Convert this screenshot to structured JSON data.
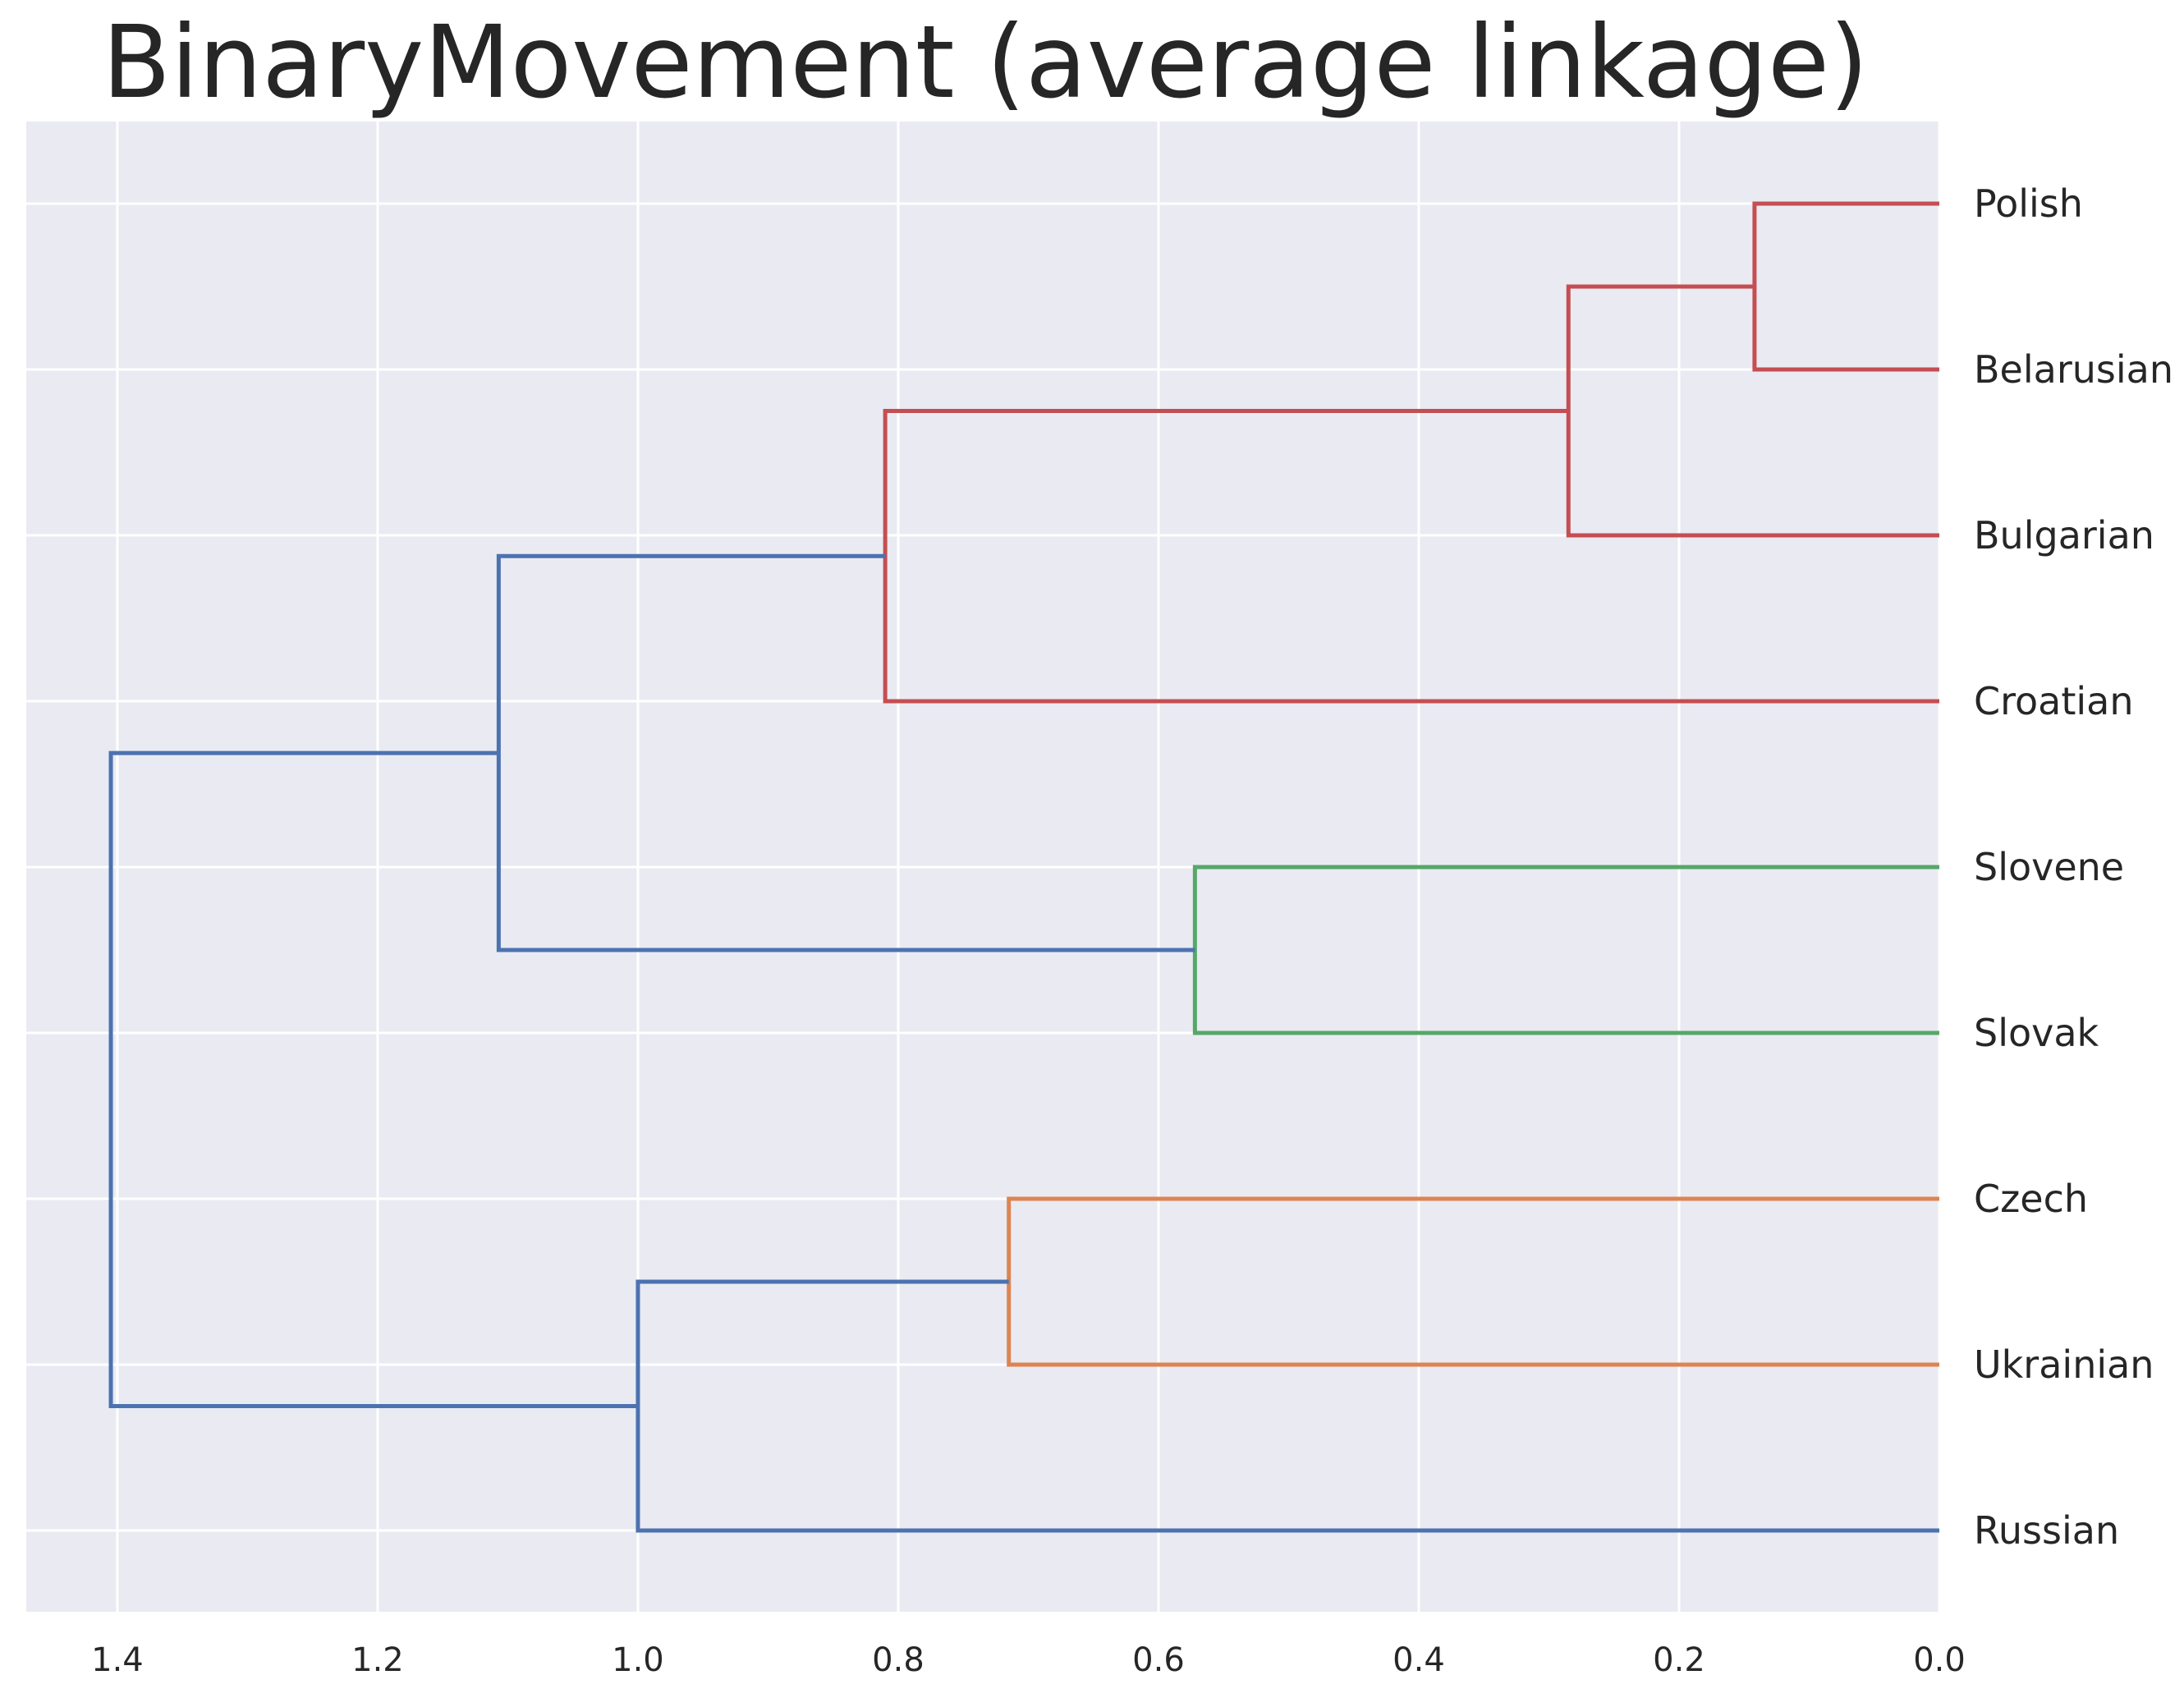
{
  "chart_data": {
    "type": "dendrogram",
    "orientation": "left",
    "title": "BinaryMovement (average linkage)",
    "xlabel": "",
    "ylabel": "",
    "xlim": [
      1.47,
      0.0
    ],
    "xticks": [
      1.4,
      1.2,
      1.0,
      0.8,
      0.6,
      0.4,
      0.2,
      0.0
    ],
    "xtick_labels": [
      "1.4",
      "1.2",
      "1.0",
      "0.8",
      "0.6",
      "0.4",
      "0.2",
      "0.0"
    ],
    "grid": true,
    "background": "#eaeaf2",
    "grid_color": "#ffffff",
    "leaves": [
      "Polish",
      "Belarusian",
      "Bulgarian",
      "Croatian",
      "Slovene",
      "Slovak",
      "Czech",
      "Ukrainian",
      "Russian"
    ],
    "colors": {
      "red": "#c44e52",
      "green": "#55a868",
      "orange": "#dd8452",
      "blue": "#4c72b0"
    },
    "merges": [
      {
        "id": "c1",
        "left": "Polish",
        "right": "Belarusian",
        "height": 0.142,
        "color": "red"
      },
      {
        "id": "c2",
        "left": "c1",
        "right": "Bulgarian",
        "height": 0.285,
        "color": "red"
      },
      {
        "id": "c3",
        "left": "c2",
        "right": "Croatian",
        "height": 0.81,
        "color": "red"
      },
      {
        "id": "c4",
        "left": "Slovene",
        "right": "Slovak",
        "height": 0.572,
        "color": "green"
      },
      {
        "id": "c5",
        "left": "c3",
        "right": "c4",
        "height": 1.107,
        "color": "blue"
      },
      {
        "id": "c6",
        "left": "Czech",
        "right": "Ukrainian",
        "height": 0.715,
        "color": "orange"
      },
      {
        "id": "c7",
        "left": "c6",
        "right": "Russian",
        "height": 1.0,
        "color": "blue"
      },
      {
        "id": "c8",
        "left": "c5",
        "right": "c7",
        "height": 1.405,
        "color": "blue"
      }
    ]
  }
}
